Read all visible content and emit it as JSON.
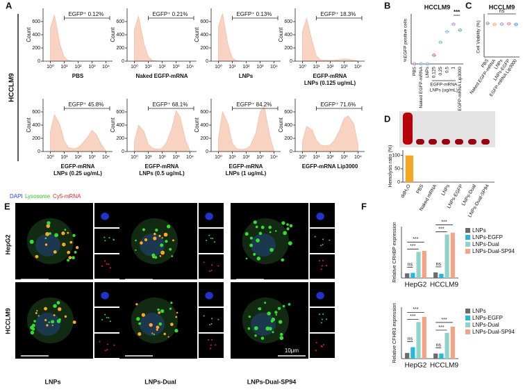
{
  "chart_data": [
    {
      "type": "area",
      "label_lines": [
        "PBS"
      ],
      "gate_label": "EGFP⁺ 0.12%",
      "ylabel": "Count",
      "color": "#f9d3c1",
      "xlog": true,
      "xlim": [
        0.3,
        30000
      ],
      "xticks": [
        {
          "value": 1,
          "label": "10⁰"
        },
        {
          "value": 10,
          "label": "10¹"
        },
        {
          "value": 100,
          "label": "10²"
        },
        {
          "value": 1000,
          "label": "10³"
        },
        {
          "value": 10000,
          "label": "10⁴"
        }
      ],
      "ylim": [
        0,
        800
      ],
      "yticks": [
        0,
        200,
        400,
        600
      ],
      "x": [
        1,
        2,
        5,
        10,
        20,
        50,
        100,
        200,
        500,
        1000,
        2000,
        5000,
        10000
      ],
      "values": [
        500,
        700,
        250,
        60,
        10,
        2,
        0,
        0,
        0,
        0,
        0,
        0,
        0
      ]
    },
    {
      "type": "area",
      "label_lines": [
        "Naked EGFP-mRNA"
      ],
      "gate_label": "EGFP⁺ 0.21%",
      "ylabel": "Count",
      "color": "#f9d3c1",
      "xlog": true,
      "xlim": [
        0.3,
        30000
      ],
      "xticks": [
        {
          "value": 1,
          "label": "10⁰"
        },
        {
          "value": 10,
          "label": "10¹"
        },
        {
          "value": 100,
          "label": "10²"
        },
        {
          "value": 1000,
          "label": "10³"
        },
        {
          "value": 10000,
          "label": "10⁴"
        }
      ],
      "ylim": [
        0,
        800
      ],
      "yticks": [
        0,
        200,
        400,
        600
      ],
      "x": [
        1,
        2,
        5,
        10,
        20,
        50,
        100,
        200,
        500,
        1000,
        2000,
        5000,
        10000
      ],
      "values": [
        480,
        680,
        260,
        70,
        10,
        2,
        0,
        0,
        0,
        0,
        0,
        0,
        0
      ]
    },
    {
      "type": "area",
      "label_lines": [
        "LNPs"
      ],
      "gate_label": "EGFP⁺ 0.13%",
      "ylabel": "Count",
      "color": "#f9d3c1",
      "xlog": true,
      "xlim": [
        0.3,
        30000
      ],
      "xticks": [
        {
          "value": 1,
          "label": "10⁰"
        },
        {
          "value": 10,
          "label": "10¹"
        },
        {
          "value": 100,
          "label": "10²"
        },
        {
          "value": 1000,
          "label": "10³"
        },
        {
          "value": 10000,
          "label": "10⁴"
        }
      ],
      "ylim": [
        0,
        800
      ],
      "yticks": [
        0,
        200,
        400,
        600
      ],
      "x": [
        1,
        2,
        5,
        10,
        20,
        50,
        100,
        200,
        500,
        1000,
        2000,
        5000,
        10000
      ],
      "values": [
        520,
        720,
        240,
        50,
        8,
        1,
        0,
        0,
        0,
        0,
        0,
        0,
        0
      ]
    },
    {
      "type": "area",
      "label_lines": [
        "EGFP-mRNA",
        "LNPs (0.125 ug/mL)"
      ],
      "gate_label": "EGFP⁺ 18.3%",
      "ylabel": "Count",
      "color": "#f9d3c1",
      "xlog": true,
      "xlim": [
        0.3,
        30000
      ],
      "xticks": [
        {
          "value": 1,
          "label": "10⁰"
        },
        {
          "value": 10,
          "label": "10¹"
        },
        {
          "value": 100,
          "label": "10²"
        },
        {
          "value": 1000,
          "label": "10³"
        },
        {
          "value": 10000,
          "label": "10⁴"
        }
      ],
      "ylim": [
        0,
        800
      ],
      "yticks": [
        0,
        200,
        400,
        600
      ],
      "x": [
        1,
        2,
        5,
        10,
        20,
        50,
        100,
        200,
        500,
        1000,
        2000,
        5000,
        10000
      ],
      "values": [
        450,
        650,
        300,
        80,
        20,
        15,
        12,
        15,
        25,
        35,
        30,
        15,
        3
      ]
    },
    {
      "type": "area",
      "label_lines": [
        "EGFP-mRNA",
        "LNPs (0.25 ug/mL)"
      ],
      "gate_label": "EGFP⁺ 45.8%",
      "ylabel": "Count",
      "color": "#f9d3c1",
      "xlog": true,
      "xlim": [
        0.3,
        30000
      ],
      "xticks": [
        {
          "value": 1,
          "label": "10⁰"
        },
        {
          "value": 10,
          "label": "10¹"
        },
        {
          "value": 100,
          "label": "10²"
        },
        {
          "value": 1000,
          "label": "10³"
        },
        {
          "value": 10000,
          "label": "10⁴"
        }
      ],
      "ylim": [
        0,
        800
      ],
      "yticks": [
        0,
        200,
        400,
        600
      ],
      "x": [
        1,
        2,
        5,
        10,
        20,
        50,
        100,
        200,
        500,
        1000,
        2000,
        5000,
        10000
      ],
      "values": [
        300,
        560,
        400,
        160,
        60,
        40,
        60,
        120,
        220,
        320,
        260,
        100,
        10
      ]
    },
    {
      "type": "area",
      "label_lines": [
        "EGFP-mRNA",
        "LNPs (0.5 ug/mL)"
      ],
      "gate_label": "EGFP⁺ 68.1%",
      "ylabel": "Count",
      "color": "#f9d3c1",
      "xlog": true,
      "xlim": [
        0.3,
        30000
      ],
      "xticks": [
        {
          "value": 1,
          "label": "10⁰"
        },
        {
          "value": 10,
          "label": "10¹"
        },
        {
          "value": 100,
          "label": "10²"
        },
        {
          "value": 1000,
          "label": "10³"
        },
        {
          "value": 10000,
          "label": "10⁴"
        }
      ],
      "ylim": [
        0,
        800
      ],
      "yticks": [
        0,
        200,
        400,
        600
      ],
      "x": [
        1,
        2,
        5,
        10,
        20,
        50,
        100,
        200,
        500,
        1000,
        2000,
        5000,
        10000
      ],
      "values": [
        150,
        400,
        300,
        110,
        50,
        35,
        50,
        130,
        350,
        620,
        520,
        160,
        15
      ]
    },
    {
      "type": "area",
      "label_lines": [
        "EGFP-mRNA",
        "LNPs (1 ug/mL)"
      ],
      "gate_label": "EGFP⁺ 84.2%",
      "ylabel": "Count",
      "color": "#f9d3c1",
      "xlog": true,
      "xlim": [
        0.3,
        30000
      ],
      "xticks": [
        {
          "value": 1,
          "label": "10⁰"
        },
        {
          "value": 10,
          "label": "10¹"
        },
        {
          "value": 100,
          "label": "10²"
        },
        {
          "value": 1000,
          "label": "10³"
        },
        {
          "value": 10000,
          "label": "10⁴"
        }
      ],
      "ylim": [
        0,
        800
      ],
      "yticks": [
        0,
        200,
        400,
        600
      ],
      "x": [
        1,
        2,
        5,
        10,
        20,
        50,
        100,
        200,
        500,
        1000,
        2000,
        5000,
        10000
      ],
      "values": [
        200,
        600,
        420,
        130,
        45,
        30,
        40,
        90,
        280,
        600,
        680,
        240,
        15
      ]
    },
    {
      "type": "area",
      "label_lines": [
        "EGFP-mRNA Lip3000"
      ],
      "gate_label": "EGFP⁺ 71.6%",
      "ylabel": "Count",
      "color": "#f9d3c1",
      "xlog": true,
      "xlim": [
        0.3,
        30000
      ],
      "xticks": [
        {
          "value": 1,
          "label": "10⁰"
        },
        {
          "value": 10,
          "label": "10¹"
        },
        {
          "value": 100,
          "label": "10²"
        },
        {
          "value": 1000,
          "label": "10³"
        },
        {
          "value": 10000,
          "label": "10⁴"
        }
      ],
      "ylim": [
        0,
        800
      ],
      "yticks": [
        0,
        200,
        400,
        600
      ],
      "x": [
        1,
        2,
        5,
        10,
        20,
        50,
        100,
        200,
        500,
        1000,
        2000,
        5000,
        10000
      ],
      "values": [
        150,
        380,
        330,
        170,
        100,
        85,
        100,
        170,
        330,
        500,
        540,
        420,
        100
      ]
    },
    {
      "type": "dot",
      "title": "HCCLM9",
      "ylabel": "%EGFP positive cells",
      "categories": [
        "PBS",
        "Naked EGFP-mRNA",
        "LNPs",
        "0.125",
        "0.25",
        "0.5",
        "1",
        "EGFP-mRNA Lip3000"
      ],
      "values": [
        0.12,
        0.21,
        0.13,
        18.3,
        45.8,
        68.1,
        84.2,
        71.6
      ],
      "colors": [
        "#9b8fc7",
        "#6fa8dc",
        "#7b9fd4",
        "#e06666",
        "#5fbfbf",
        "#7fb3e0",
        "#a98fd6",
        "#55b39a"
      ],
      "ylim": [
        0,
        100
      ],
      "group_label_lines": [
        "EGFP-mRNA",
        "LNPs (ug/mL)"
      ],
      "annotation": "***"
    },
    {
      "type": "dot",
      "title": "HCCLM9",
      "ylabel": "Cell Viability (%)",
      "categories": [
        "PBS",
        "Naked EGFP-mRNA",
        "LNPs",
        "LNPs-EGFP",
        "EGFP-mRNA Lip3000"
      ],
      "values": [
        100,
        97,
        98,
        99,
        97
      ],
      "colors": [
        "#9b8fc7",
        "#f0b050",
        "#a98fd6",
        "#e07090",
        "#4a8fd6"
      ],
      "ylim": [
        0,
        120
      ],
      "annotation": "ns"
    },
    {
      "type": "bar",
      "ylabel": "Hemolysis ratio (%)",
      "categories": [
        "ddH₂O",
        "PBS",
        "Naked mRNA",
        "LNPs",
        "LNPs-EGFP",
        "LNPs-Dual",
        "LNPs-Dual-SP94"
      ],
      "values": [
        100,
        0.5,
        0.5,
        0.5,
        0.5,
        0.5,
        0.5
      ],
      "color": "#f5a623",
      "ylim": [
        0,
        120
      ],
      "yticks": [
        0,
        50,
        100
      ]
    },
    {
      "type": "grouped-bar",
      "ylabel": "Relative CRHBP expression",
      "categories": [
        "HepG2",
        "HCCLM9"
      ],
      "series": [
        {
          "name": "LNPs",
          "color": "#6b6b6b",
          "values": [
            1,
            1.2
          ]
        },
        {
          "name": "LNPs-EGFP",
          "color": "#26b7dc",
          "values": [
            1.1,
            0.9
          ]
        },
        {
          "name": "LNPs-Dual",
          "color": "#8fd3cd",
          "values": [
            5.6,
            9.3
          ]
        },
        {
          "name": "LNPs-Dual-SP94",
          "color": "#f6a383",
          "values": [
            5.8,
            9.7
          ]
        }
      ],
      "ylim": [
        0,
        11
      ],
      "annotations": [
        "ns",
        "***",
        "***",
        "ns",
        "***",
        "***"
      ]
    },
    {
      "type": "grouped-bar",
      "ylabel": "Relative CFHR3 expression",
      "categories": [
        "HepG2",
        "HCCLM9"
      ],
      "series": [
        {
          "name": "LNPs",
          "color": "#6b6b6b",
          "values": [
            1,
            0.9
          ]
        },
        {
          "name": "LNPs-EGFP",
          "color": "#26b7dc",
          "values": [
            2,
            0.9
          ]
        },
        {
          "name": "LNPs-Dual",
          "color": "#8fd3cd",
          "values": [
            6.4,
            4.5
          ]
        },
        {
          "name": "LNPs-Dual-SP94",
          "color": "#f6a383",
          "values": [
            7.3,
            5.6
          ]
        }
      ],
      "ylim": [
        0,
        9
      ],
      "annotations": [
        "ns",
        "***",
        "***",
        "ns",
        "***",
        "***"
      ]
    }
  ],
  "panels": {
    "letters": [
      "A",
      "B",
      "C",
      "D",
      "E",
      "F"
    ],
    "row_label": "HCCLM9",
    "microscopy": {
      "stains": [
        "DAPI",
        "Lysosome",
        "Cy5-mRNA"
      ],
      "rows": [
        "HepG2",
        "HCCLM9"
      ],
      "columns": [
        "LNPs",
        "LNPs-Dual",
        "LNPs-Dual-SP94"
      ],
      "scale_bar": "10μm"
    }
  }
}
